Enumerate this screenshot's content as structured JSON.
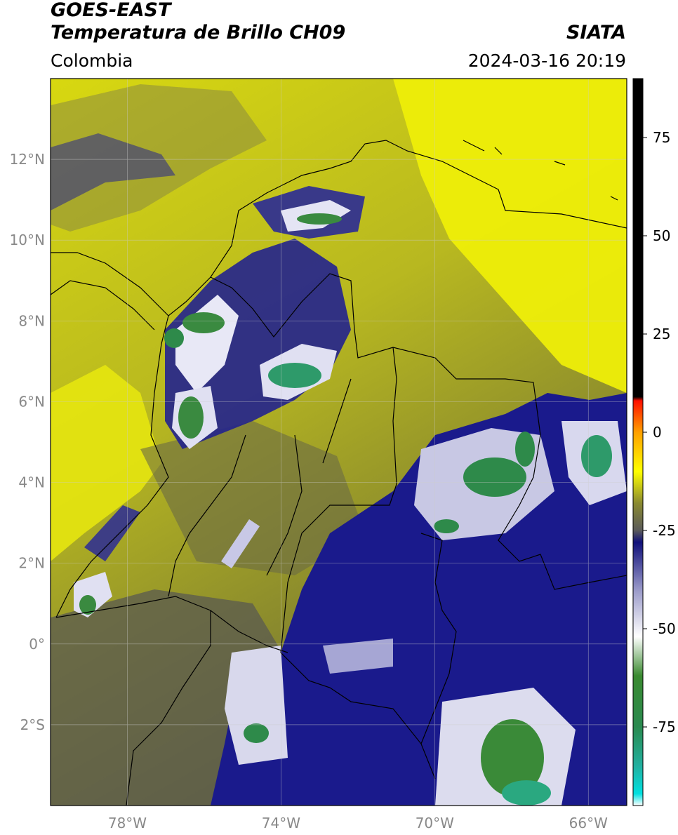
{
  "header": {
    "satellite": "GOES-EAST",
    "product": "Temperatura de Brillo CH09",
    "organization": "SIATA",
    "region": "Colombia",
    "timestamp": "2024-03-16 20:19"
  },
  "map": {
    "lon_range": [
      -80,
      -65
    ],
    "lat_range": [
      -4,
      14
    ],
    "lat_ticks": [
      {
        "value": 12,
        "label": "12°N"
      },
      {
        "value": 10,
        "label": "10°N"
      },
      {
        "value": 8,
        "label": "8°N"
      },
      {
        "value": 6,
        "label": "6°N"
      },
      {
        "value": 4,
        "label": "4°N"
      },
      {
        "value": 2,
        "label": "2°N"
      },
      {
        "value": 0,
        "label": "0°"
      },
      {
        "value": -2,
        "label": "2°S"
      }
    ],
    "lon_ticks": [
      {
        "value": -78,
        "label": "78°W"
      },
      {
        "value": -74,
        "label": "74°W"
      },
      {
        "value": -70,
        "label": "70°W"
      },
      {
        "value": -66,
        "label": "66°W"
      }
    ],
    "colors": {
      "warm": "#e8e80a",
      "mid": "#8a8a30",
      "dark": "#4a4a48",
      "cold": "#1a1a8c",
      "very_cold": "#f2f2f8",
      "coldest": "#2e9a6a"
    }
  },
  "colorbar": {
    "ticks": [
      {
        "value": 75,
        "label": "75"
      },
      {
        "value": 50,
        "label": "50"
      },
      {
        "value": 25,
        "label": "25"
      },
      {
        "value": 0,
        "label": "0"
      },
      {
        "value": -25,
        "label": "-25"
      },
      {
        "value": -50,
        "label": "-50"
      },
      {
        "value": -75,
        "label": "-75"
      }
    ],
    "range": [
      -95,
      90
    ],
    "stops": [
      {
        "value": -95,
        "color": "#ffffff"
      },
      {
        "value": -92,
        "color": "#00e0e0"
      },
      {
        "value": -85,
        "color": "#22b0a0"
      },
      {
        "value": -75,
        "color": "#2a8a50"
      },
      {
        "value": -62,
        "color": "#3a8a30"
      },
      {
        "value": -52,
        "color": "#ffffff"
      },
      {
        "value": -40,
        "color": "#9898c8"
      },
      {
        "value": -28,
        "color": "#10107a"
      },
      {
        "value": -25,
        "color": "#5a5a5a"
      },
      {
        "value": -18,
        "color": "#8a8a30"
      },
      {
        "value": -10,
        "color": "#ffff00"
      },
      {
        "value": 0,
        "color": "#ffa000"
      },
      {
        "value": 8,
        "color": "#ff1000"
      },
      {
        "value": 9,
        "color": "#000000"
      },
      {
        "value": 90,
        "color": "#000000"
      }
    ]
  }
}
